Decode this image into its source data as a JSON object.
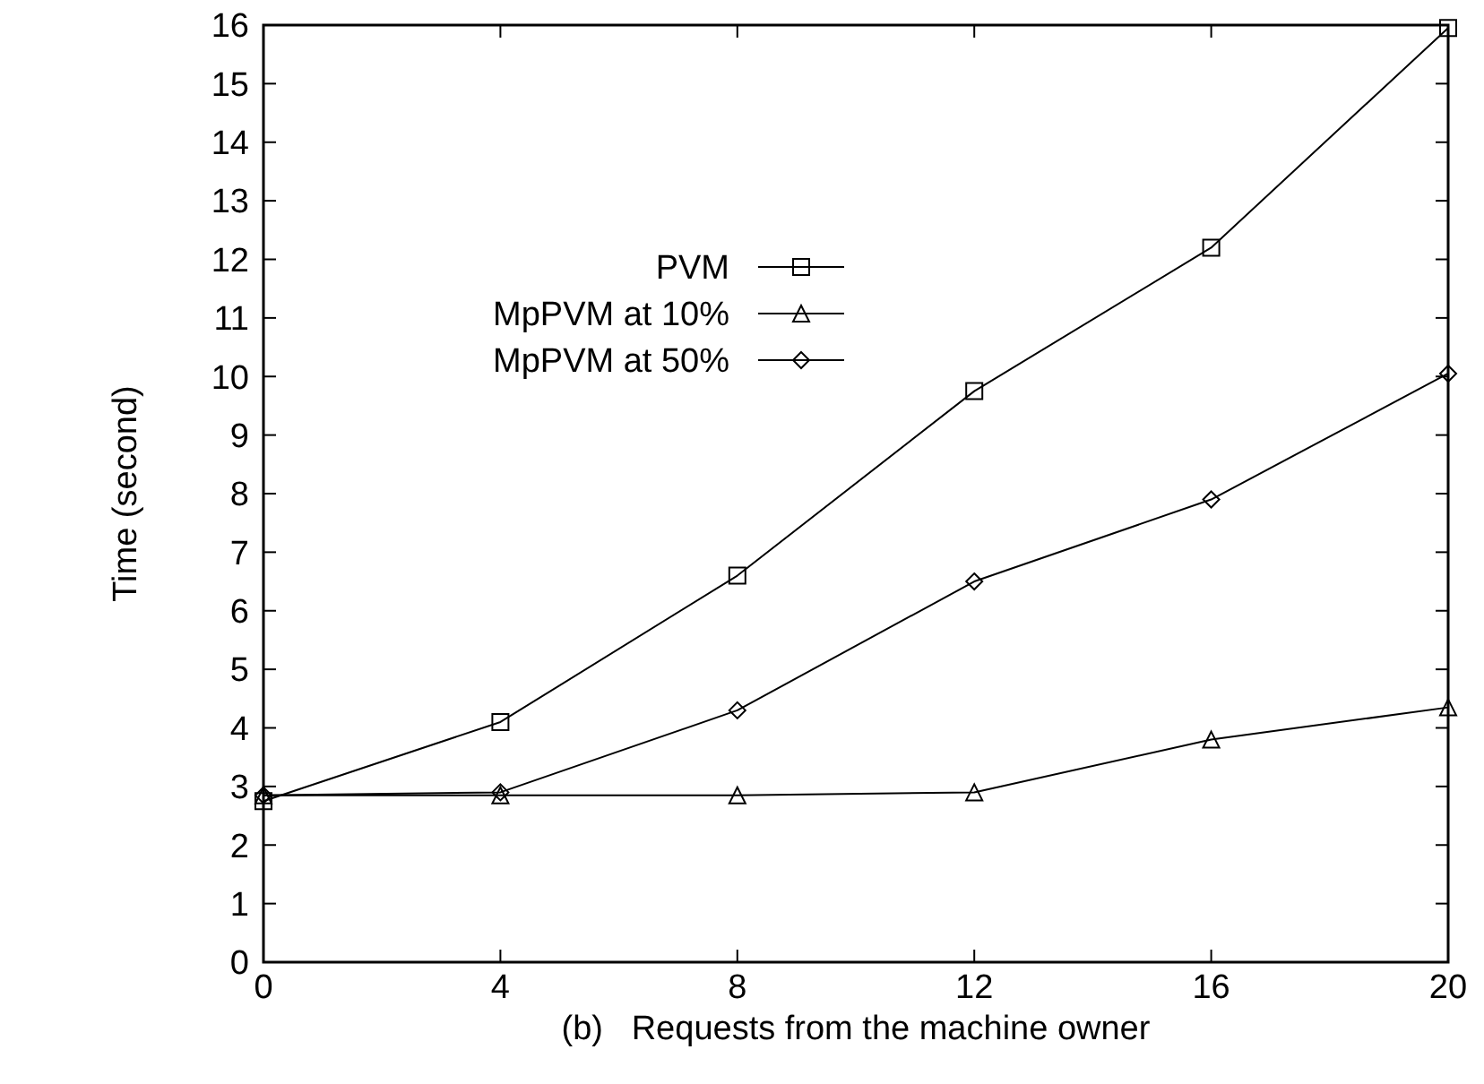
{
  "chart_data": {
    "type": "line",
    "xlabel": "(b)   Requests from the machine owner",
    "ylabel": "Time (second)",
    "x": [
      0,
      4,
      8,
      12,
      16,
      20
    ],
    "xlim": [
      0,
      20
    ],
    "xticks": [
      0,
      4,
      8,
      12,
      16,
      20
    ],
    "ylim": [
      0,
      16
    ],
    "yticks": [
      0,
      1,
      2,
      3,
      4,
      5,
      6,
      7,
      8,
      9,
      10,
      11,
      12,
      13,
      14,
      15,
      16
    ],
    "series": [
      {
        "name": "PVM",
        "color": "#000000",
        "marker": "square",
        "values": [
          2.75,
          4.1,
          6.6,
          9.75,
          12.2,
          15.95
        ]
      },
      {
        "name": "MpPVM at 10%",
        "color": "#000000",
        "marker": "triangle",
        "values": [
          2.85,
          2.85,
          2.85,
          2.9,
          3.8,
          4.35
        ]
      },
      {
        "name": "MpPVM at 50%",
        "color": "#000000",
        "marker": "diamond",
        "values": [
          2.85,
          2.9,
          4.3,
          6.5,
          7.9,
          10.05
        ]
      }
    ],
    "legend": "top left",
    "grid": false,
    "line_style": "solid"
  }
}
